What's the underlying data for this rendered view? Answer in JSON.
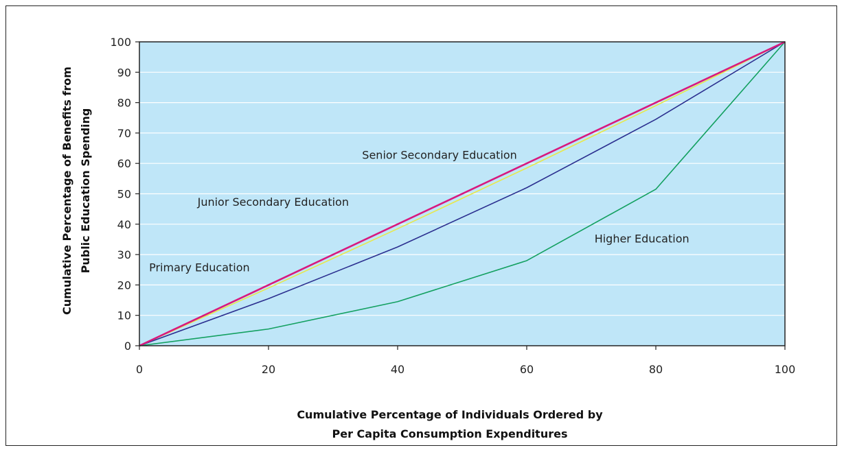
{
  "chart_data": {
    "type": "line",
    "title": "",
    "xlabel": [
      "Cumulative Percentage of Individuals Ordered by",
      "Per Capita Consumption Expenditures"
    ],
    "ylabel": [
      "Cumulative Percentage of Benefits from",
      "Public Education Spending"
    ],
    "xlim": [
      0,
      100
    ],
    "ylim": [
      0,
      100
    ],
    "x_ticks": [
      0,
      20,
      40,
      60,
      80,
      100
    ],
    "y_ticks": [
      0,
      10,
      20,
      30,
      40,
      50,
      60,
      70,
      80,
      90,
      100
    ],
    "grid": "horizontal",
    "background_color": "#bfe6f8",
    "x": [
      0,
      20,
      40,
      60,
      80,
      100
    ],
    "series": [
      {
        "name": "Higher Education",
        "color": "#13a060",
        "values": [
          0,
          5.5,
          14.5,
          28,
          51.5,
          100
        ]
      },
      {
        "name": "Senior Secondary Education",
        "color": "#2b2f8f",
        "values": [
          0,
          15.5,
          32.5,
          52,
          74.5,
          100
        ]
      },
      {
        "name": "Junior Secondary Education",
        "color": "#e8e84a",
        "values": [
          0,
          19,
          38.5,
          58.5,
          79,
          100
        ]
      },
      {
        "name": "Primary Education",
        "color": "#d8197e",
        "values": [
          0,
          20,
          40,
          60,
          80,
          100
        ]
      }
    ],
    "annotations": [
      {
        "text": "Senior Secondary Education",
        "x": 34.5,
        "y": 61.5
      },
      {
        "text": "Junior Secondary Education",
        "x": 9,
        "y": 46
      },
      {
        "text": "Primary Education",
        "x": 1.5,
        "y": 24.5
      },
      {
        "text": "Higher Education",
        "x": 70.5,
        "y": 34
      }
    ]
  }
}
